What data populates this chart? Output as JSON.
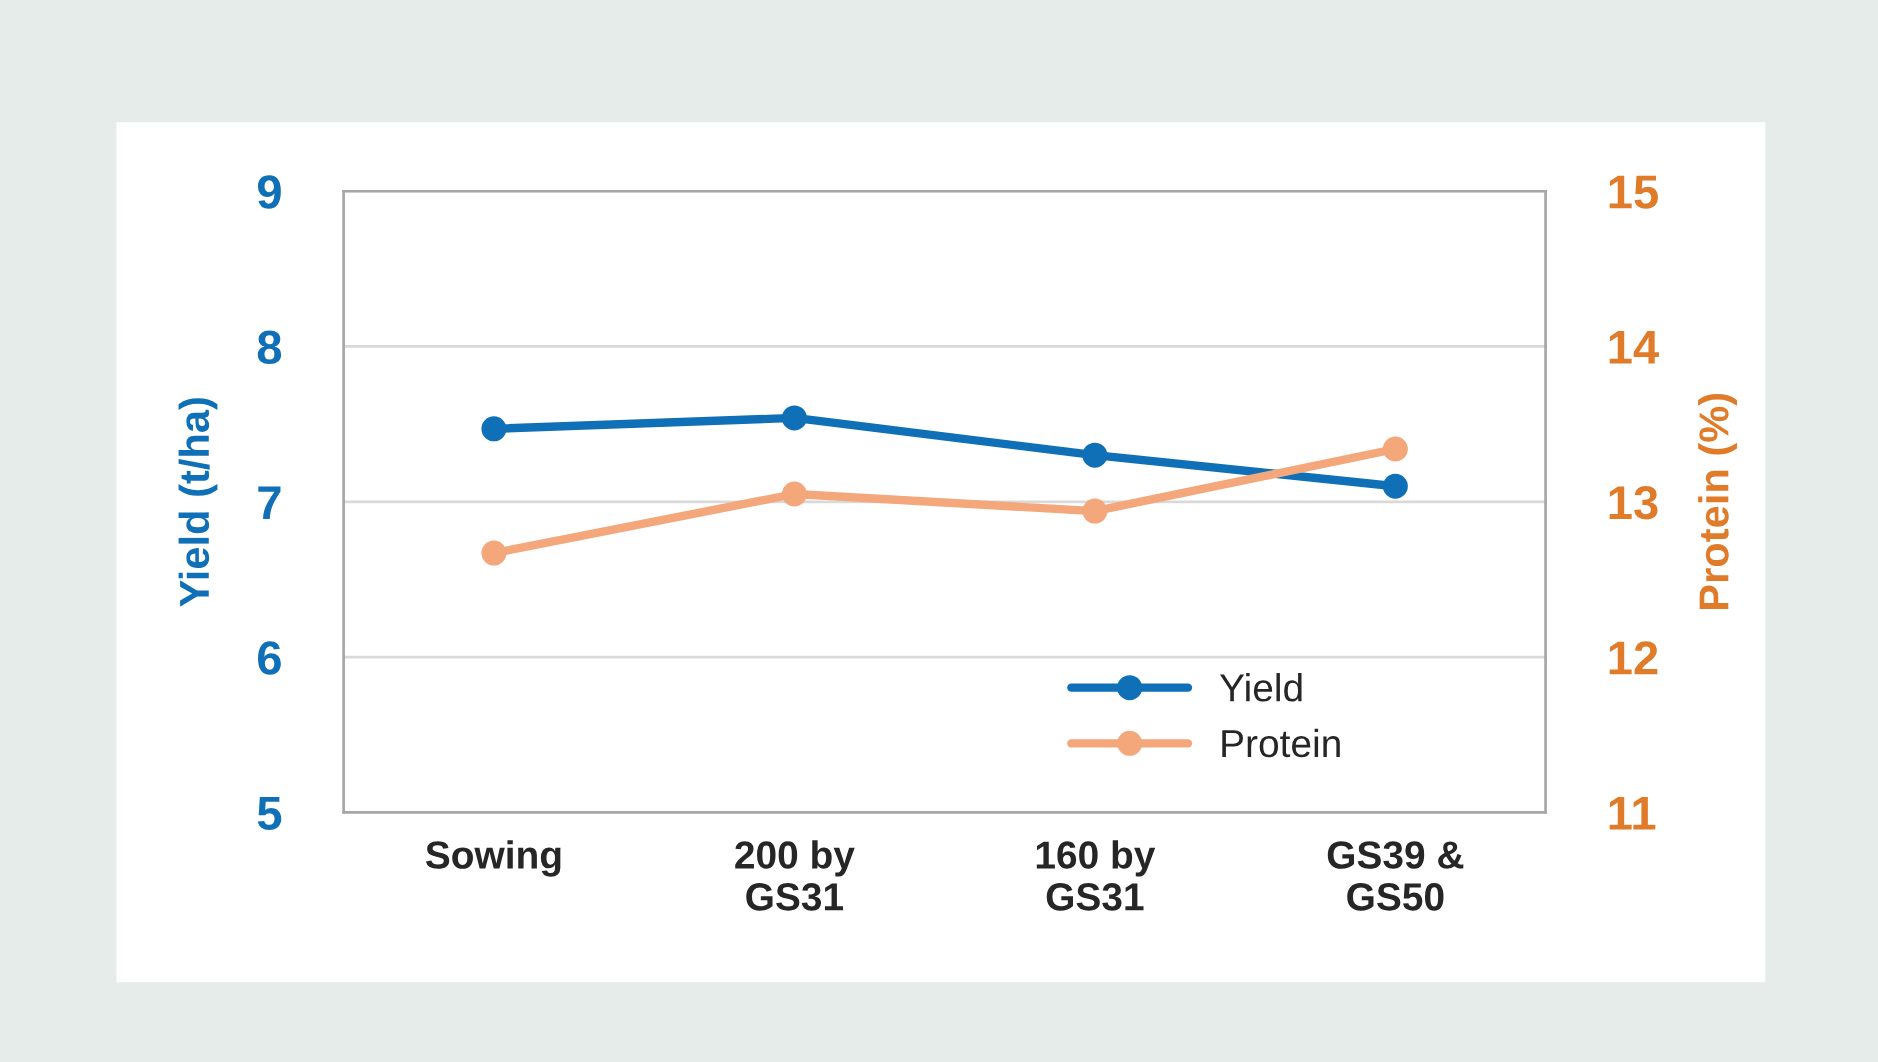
{
  "chart_data": {
    "type": "line",
    "ylabel": "Yield (t/ha)",
    "y2label": "Protein (%)",
    "categories": [
      "Sowing",
      "200 by\nGS31",
      "160 by\nGS31",
      "GS39 &\nGS50"
    ],
    "series": [
      {
        "name": "Yield",
        "color": "#0f70b7",
        "values": [
          7.47,
          7.54,
          7.3,
          7.1
        ]
      },
      {
        "name": "Protein",
        "color": "#f4a77a",
        "axis": "y2",
        "values": [
          12.67,
          13.05,
          12.94,
          13.34
        ]
      }
    ],
    "ylim": [
      5,
      9
    ],
    "yticks": [
      5,
      6,
      7,
      8,
      9
    ],
    "y2lim": [
      11,
      15
    ],
    "y2ticks": [
      11,
      12,
      13,
      14,
      15
    ],
    "grid": "y",
    "legend": "bottom right",
    "marker": "circle",
    "line_style": "solid"
  }
}
